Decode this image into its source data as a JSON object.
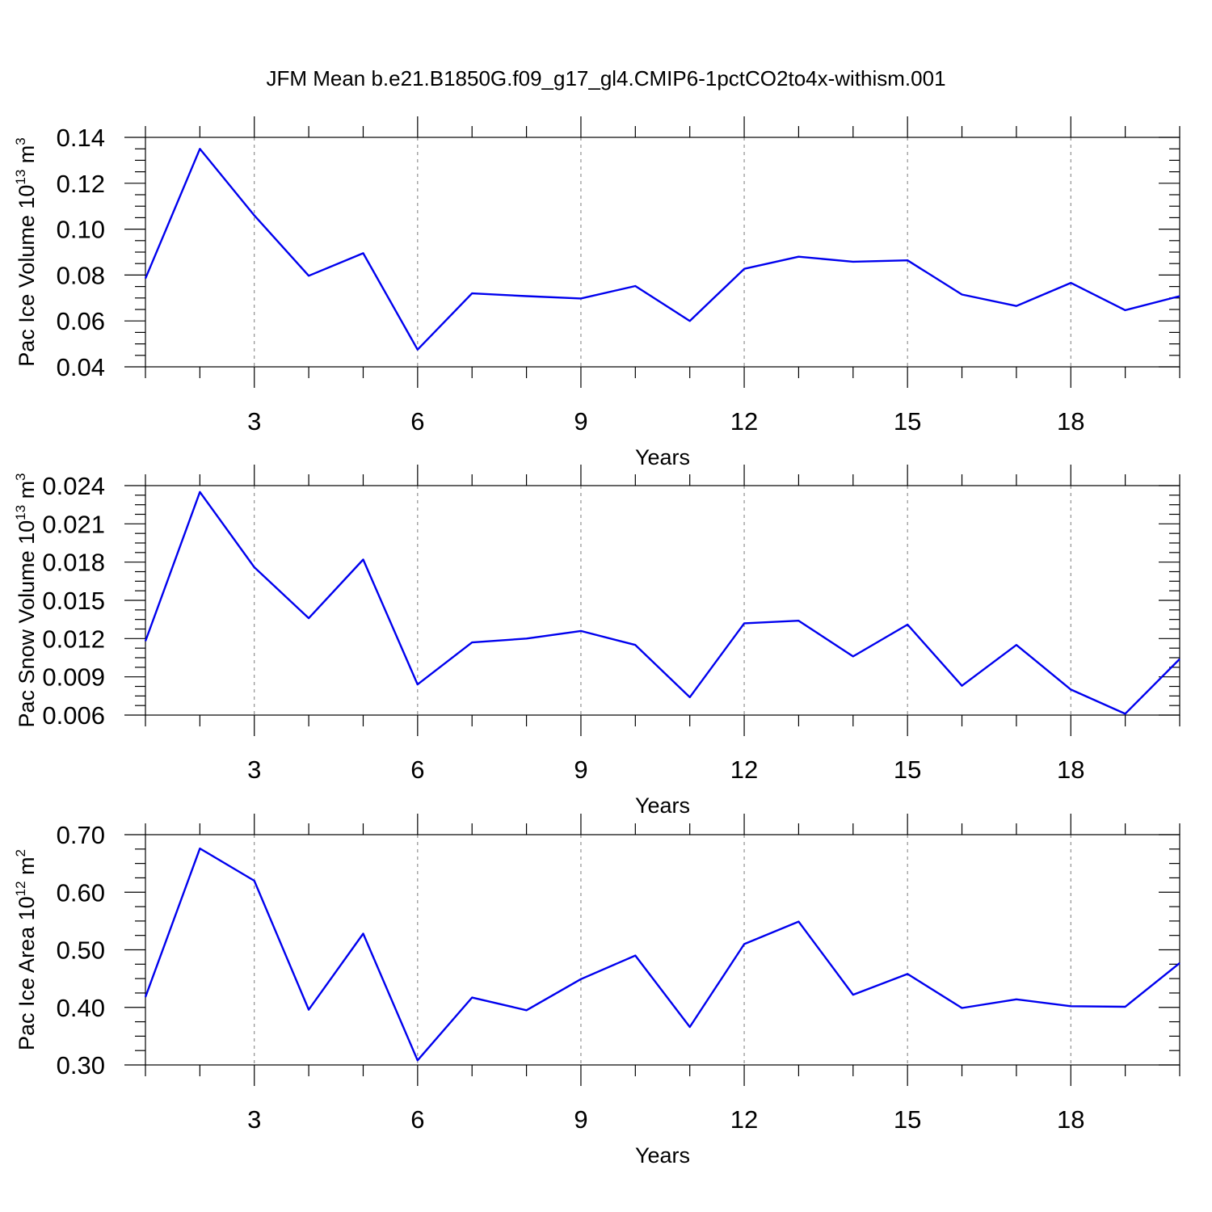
{
  "title": "JFM Mean b.e21.B1850G.f09_g17_gl4.CMIP6-1pctCO2to4x-withism.001",
  "chart_data": [
    {
      "type": "line",
      "title": "",
      "xlabel": "Years",
      "ylabel": {
        "text": "Pac Ice Volume 10",
        "sup1": "13",
        "unit": " m",
        "sup2": "3"
      },
      "xlim": [
        1,
        20
      ],
      "ylim": [
        0.04,
        0.14
      ],
      "xticks": [
        3,
        6,
        9,
        12,
        15,
        18
      ],
      "yticks": [
        0.04,
        0.06,
        0.08,
        0.1,
        0.12,
        0.14
      ],
      "ytick_labels": [
        "0.04",
        "0.06",
        "0.08",
        "0.10",
        "0.12",
        "0.14"
      ],
      "xgrid": true,
      "color": "#0000ee",
      "x": [
        1,
        2,
        3,
        4,
        5,
        6,
        7,
        8,
        9,
        10,
        11,
        12,
        13,
        14,
        15,
        16,
        17,
        18,
        19,
        20
      ],
      "values": [
        0.0785,
        0.135,
        0.106,
        0.0797,
        0.0895,
        0.0475,
        0.072,
        0.0708,
        0.0698,
        0.0752,
        0.06,
        0.0827,
        0.088,
        0.0858,
        0.0864,
        0.0715,
        0.0665,
        0.0766,
        0.0647,
        0.0708
      ]
    },
    {
      "type": "line",
      "title": "",
      "xlabel": "Years",
      "ylabel": {
        "text": "Pac Snow Volume 10",
        "sup1": "13",
        "unit": " m",
        "sup2": "3"
      },
      "xlim": [
        1,
        20
      ],
      "ylim": [
        0.006,
        0.024
      ],
      "xticks": [
        3,
        6,
        9,
        12,
        15,
        18
      ],
      "yticks": [
        0.006,
        0.009,
        0.012,
        0.015,
        0.018,
        0.021,
        0.024
      ],
      "ytick_labels": [
        "0.006",
        "0.009",
        "0.012",
        "0.015",
        "0.018",
        "0.021",
        "0.024"
      ],
      "xgrid": true,
      "color": "#0000ee",
      "x": [
        1,
        2,
        3,
        4,
        5,
        6,
        7,
        8,
        9,
        10,
        11,
        12,
        13,
        14,
        15,
        16,
        17,
        18,
        19,
        20
      ],
      "values": [
        0.0118,
        0.0235,
        0.0176,
        0.0136,
        0.0182,
        0.0084,
        0.0117,
        0.012,
        0.0126,
        0.0115,
        0.0074,
        0.0132,
        0.0134,
        0.0106,
        0.0131,
        0.0083,
        0.0115,
        0.008,
        0.0061,
        0.0104
      ]
    },
    {
      "type": "line",
      "title": "",
      "xlabel": "Years",
      "ylabel": {
        "text": "Pac Ice Area 10",
        "sup1": "12",
        "unit": " m",
        "sup2": "2"
      },
      "xlim": [
        1,
        20
      ],
      "ylim": [
        0.3,
        0.7
      ],
      "xticks": [
        3,
        6,
        9,
        12,
        15,
        18
      ],
      "yticks": [
        0.3,
        0.4,
        0.5,
        0.6,
        0.7
      ],
      "ytick_labels": [
        "0.30",
        "0.40",
        "0.50",
        "0.60",
        "0.70"
      ],
      "xgrid": true,
      "color": "#0000ee",
      "x": [
        1,
        2,
        3,
        4,
        5,
        6,
        7,
        8,
        9,
        10,
        11,
        12,
        13,
        14,
        15,
        16,
        17,
        18,
        19,
        20
      ],
      "values": [
        0.418,
        0.676,
        0.62,
        0.396,
        0.528,
        0.308,
        0.417,
        0.395,
        0.449,
        0.49,
        0.366,
        0.51,
        0.549,
        0.422,
        0.458,
        0.399,
        0.414,
        0.402,
        0.401,
        0.477
      ]
    }
  ]
}
